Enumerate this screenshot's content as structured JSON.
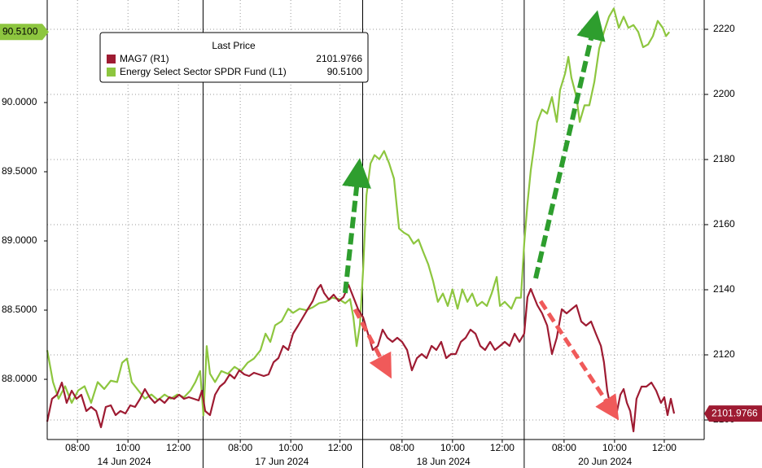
{
  "chart_data": {
    "type": "line",
    "legend_title": "Last Price",
    "xlim": [
      0,
      26
    ],
    "ylim": [
      87.565,
      90.741
    ],
    "y2lim": [
      2094,
      2229
    ],
    "yticks": [
      {
        "value": 88,
        "label": "88.0000"
      },
      {
        "value": 88.5,
        "label": "88.5000"
      },
      {
        "value": 89,
        "label": "89.0000"
      },
      {
        "value": 89.5,
        "label": "89.5000"
      },
      {
        "value": 90,
        "label": "90.0000"
      }
    ],
    "y2ticks": [
      2100,
      2120,
      2140,
      2160,
      2180,
      2200,
      2220
    ],
    "xticks": [
      {
        "value": 1.2,
        "label": "08:00"
      },
      {
        "value": 3.2,
        "label": "10:00"
      },
      {
        "value": 5.2,
        "label": "12:00"
      },
      {
        "value": 7.65,
        "label": "08:00"
      },
      {
        "value": 9.65,
        "label": "10:00"
      },
      {
        "value": 11.6,
        "label": "12:00"
      },
      {
        "value": 14.06,
        "label": "08:00"
      },
      {
        "value": 16.06,
        "label": "10:00"
      },
      {
        "value": 18.03,
        "label": "12:00"
      },
      {
        "value": 20.48,
        "label": "08:00"
      },
      {
        "value": 22.48,
        "label": "10:00"
      },
      {
        "value": 24.45,
        "label": "12:00"
      }
    ],
    "date_ticks": [
      {
        "value": 3.05,
        "label": "14 Jun 2024"
      },
      {
        "value": 9.3,
        "label": "17 Jun 2024"
      },
      {
        "value": 15.7,
        "label": "18 Jun 2024"
      },
      {
        "value": 22.1,
        "label": "20 Jun 2024"
      }
    ],
    "grid": true,
    "series": [
      {
        "name": "MAG7  (R1)",
        "color": "#9e1b32",
        "axis": "y2",
        "last_value_label": "2101.9766",
        "x": [
          0,
          0.19,
          0.39,
          0.58,
          0.77,
          0.97,
          1.16,
          1.35,
          1.55,
          1.74,
          1.94,
          2.13,
          2.32,
          2.52,
          2.71,
          2.9,
          3.1,
          3.29,
          3.48,
          3.68,
          3.87,
          4.06,
          4.26,
          4.45,
          4.65,
          4.84,
          5.03,
          5.23,
          5.42,
          5.61,
          5.81,
          6.0,
          6.13,
          6.26,
          6.45,
          6.65,
          6.84,
          7.03,
          7.23,
          7.42,
          7.61,
          7.81,
          8.0,
          8.19,
          8.39,
          8.58,
          8.77,
          8.97,
          9.16,
          9.35,
          9.55,
          9.74,
          9.94,
          10.13,
          10.32,
          10.52,
          10.71,
          10.84,
          10.97,
          11.16,
          11.35,
          11.55,
          11.74,
          11.94,
          12.13,
          12.32,
          12.52,
          12.71,
          12.9,
          13.1,
          13.29,
          13.48,
          13.68,
          13.87,
          14.06,
          14.26,
          14.45,
          14.65,
          14.84,
          15.03,
          15.23,
          15.42,
          15.61,
          15.81,
          16.0,
          16.19,
          16.39,
          16.58,
          16.77,
          16.97,
          17.16,
          17.35,
          17.55,
          17.74,
          17.94,
          18.13,
          18.32,
          18.52,
          18.71,
          18.9,
          19.03,
          19.16,
          19.29,
          19.42,
          19.61,
          19.81,
          20.0,
          20.19,
          20.39,
          20.58,
          20.77,
          20.97,
          21.16,
          21.35,
          21.55,
          21.74,
          21.94,
          22.06,
          22.19,
          22.32,
          22.45,
          22.58,
          22.71,
          22.84,
          22.97,
          23.1,
          23.23,
          23.35,
          23.55,
          23.74,
          23.94,
          24.13,
          24.32,
          24.45,
          24.58,
          24.71,
          24.84
        ],
        "values": [
          2099.5,
          2106.5,
          2107.75,
          2111.5,
          2105.25,
          2109,
          2106.5,
          2107.75,
          2102.75,
          2104,
          2102.75,
          2097.75,
          2104,
          2104.5,
          2101.5,
          2102.75,
          2102,
          2104.5,
          2104,
          2106.5,
          2109.5,
          2107,
          2105.25,
          2106.5,
          2105.25,
          2107,
          2106.5,
          2107.75,
          2106.5,
          2107,
          2106.5,
          2106,
          2109,
          2102.75,
          2101.5,
          2107.75,
          2110.25,
          2111.5,
          2114,
          2112.75,
          2115.25,
          2114,
          2113.5,
          2114.5,
          2114,
          2113.5,
          2114,
          2117.75,
          2119,
          2122.75,
          2121.5,
          2126.5,
          2129,
          2131.5,
          2134,
          2136.5,
          2140.25,
          2141.5,
          2139,
          2137,
          2138.5,
          2136.5,
          2137.75,
          2141.5,
          2137.75,
          2134,
          2131.5,
          2126.5,
          2121.5,
          2122.75,
          2127.75,
          2125.25,
          2124,
          2125.25,
          2124,
          2121.5,
          2115.25,
          2119,
          2120.25,
          2119,
          2122.75,
          2121.5,
          2124,
          2119,
          2120.25,
          2120.25,
          2124,
          2125.25,
          2127.75,
          2126.5,
          2122.75,
          2121.5,
          2124,
          2121.5,
          2122.75,
          2124,
          2122.75,
          2126.5,
          2124,
          2126.5,
          2137.75,
          2140.25,
          2137.75,
          2135.25,
          2132.75,
          2129,
          2120.25,
          2125.25,
          2134,
          2132.75,
          2134,
          2135.25,
          2130.25,
          2129,
          2130.25,
          2126.5,
          2122.75,
          2117.75,
          2109,
          2104,
          2106.5,
          2102.75,
          2107.75,
          2109.5,
          2105.25,
          2102.75,
          2096.5,
          2106.5,
          2110.25,
          2110.25,
          2111.5,
          2109,
          2105.25,
          2107,
          2101.5,
          2106.5,
          2101.9766
        ]
      },
      {
        "name": "Energy Select Sector SPDR Fund  (L1)",
        "color": "#8dc63f",
        "axis": "y",
        "last_value_label": "90.5100",
        "x": [
          0,
          0.23,
          0.45,
          0.71,
          0.97,
          1.23,
          1.48,
          1.74,
          2.0,
          2.26,
          2.52,
          2.77,
          2.97,
          3.16,
          3.35,
          3.61,
          3.87,
          4.13,
          4.39,
          4.65,
          4.9,
          5.16,
          5.42,
          5.68,
          5.87,
          6.06,
          6.19,
          6.32,
          6.45,
          6.65,
          6.9,
          7.16,
          7.42,
          7.68,
          7.94,
          8.19,
          8.45,
          8.65,
          8.84,
          9.03,
          9.29,
          9.55,
          9.74,
          10.0,
          10.26,
          10.52,
          10.77,
          11.03,
          11.29,
          11.55,
          11.81,
          12.0,
          12.13,
          12.26,
          12.39,
          12.52,
          12.65,
          12.81,
          12.97,
          13.16,
          13.35,
          13.55,
          13.74,
          13.94,
          14.13,
          14.32,
          14.52,
          14.71,
          14.9,
          15.1,
          15.29,
          15.48,
          15.68,
          15.87,
          16.06,
          16.26,
          16.45,
          16.65,
          16.84,
          17.03,
          17.23,
          17.42,
          17.61,
          17.81,
          17.94,
          18.13,
          18.39,
          18.58,
          18.77,
          18.9,
          19.03,
          19.16,
          19.29,
          19.42,
          19.61,
          19.81,
          20.0,
          20.19,
          20.32,
          20.52,
          20.65,
          20.77,
          20.97,
          21.1,
          21.29,
          21.48,
          21.68,
          21.87,
          22.06,
          22.26,
          22.45,
          22.65,
          22.84,
          23.03,
          23.23,
          23.42,
          23.61,
          23.81,
          24.0,
          24.19,
          24.39,
          24.52,
          24.65
        ],
        "values": [
          88.21,
          87.98,
          87.86,
          87.95,
          87.83,
          87.92,
          87.95,
          87.83,
          87.98,
          87.93,
          87.99,
          87.98,
          88.12,
          88.15,
          87.98,
          87.92,
          87.86,
          87.89,
          87.85,
          87.89,
          87.86,
          87.89,
          87.87,
          87.92,
          87.98,
          88.06,
          87.74,
          88.24,
          88.04,
          87.98,
          88.06,
          88.04,
          88.09,
          88.06,
          88.12,
          88.15,
          88.21,
          88.33,
          88.27,
          88.39,
          88.42,
          88.51,
          88.48,
          88.51,
          88.5,
          88.52,
          88.55,
          88.56,
          88.59,
          88.58,
          88.55,
          88.58,
          88.45,
          88.24,
          88.39,
          88.8,
          89.33,
          89.56,
          89.62,
          89.59,
          89.65,
          89.56,
          89.45,
          89.09,
          89.06,
          89.04,
          88.98,
          89.01,
          88.92,
          88.83,
          88.71,
          88.56,
          88.62,
          88.53,
          88.65,
          88.51,
          88.65,
          88.56,
          88.62,
          88.53,
          88.56,
          88.53,
          88.62,
          88.74,
          88.53,
          88.56,
          88.51,
          88.59,
          88.59,
          88.98,
          89.27,
          89.51,
          89.68,
          89.86,
          89.95,
          89.92,
          90.04,
          89.86,
          90.09,
          90.21,
          90.33,
          90.18,
          90.04,
          89.86,
          89.98,
          89.98,
          90.15,
          90.39,
          90.51,
          90.62,
          90.68,
          90.54,
          90.62,
          90.54,
          90.56,
          90.51,
          90.4,
          90.42,
          90.48,
          90.59,
          90.54,
          90.48,
          90.51
        ]
      }
    ]
  }
}
